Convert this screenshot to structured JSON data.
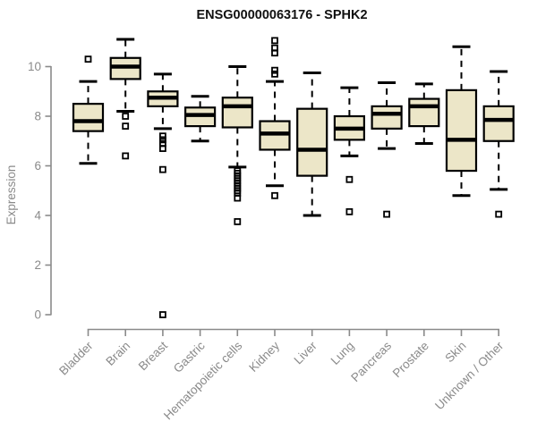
{
  "chart_data": {
    "type": "boxplot",
    "title": "ENSG00000063176 - SPHK2",
    "xlabel": "",
    "ylabel": "Expression",
    "ylim": [
      0,
      10
    ],
    "yticks": [
      0,
      2,
      4,
      6,
      8,
      10
    ],
    "grid": false,
    "legend": "none",
    "x_tick_rotation_degrees": 45,
    "categories": [
      "Bladder",
      "Brain",
      "Breast",
      "Gastric",
      "Hematopoietic cells",
      "Kidney",
      "Liver",
      "Lung",
      "Pancreas",
      "Prostate",
      "Skin",
      "Unknown / Other"
    ],
    "series": [
      {
        "name": "Bladder",
        "low": 6.1,
        "q1": 7.4,
        "median": 7.8,
        "q3": 8.5,
        "high": 9.4,
        "outliers": [
          10.3
        ]
      },
      {
        "name": "Brain",
        "low": 8.2,
        "q1": 9.5,
        "median": 10.0,
        "q3": 10.35,
        "high": 11.1,
        "outliers": [
          8.0,
          7.6,
          6.4
        ]
      },
      {
        "name": "Breast",
        "low": 7.5,
        "q1": 8.4,
        "median": 8.75,
        "q3": 9.0,
        "high": 9.7,
        "outliers": [
          7.2,
          7.05,
          6.9,
          6.7,
          5.85,
          0.0
        ]
      },
      {
        "name": "Gastric",
        "low": 7.0,
        "q1": 7.6,
        "median": 8.05,
        "q3": 8.35,
        "high": 8.8,
        "outliers": []
      },
      {
        "name": "Hematopoietic cells",
        "low": 5.95,
        "q1": 7.55,
        "median": 8.4,
        "q3": 8.75,
        "high": 10.0,
        "outliers": [
          5.8,
          5.7,
          5.6,
          5.5,
          5.4,
          5.3,
          5.2,
          5.1,
          5.0,
          4.9,
          4.7,
          3.75
        ]
      },
      {
        "name": "Kidney",
        "low": 5.2,
        "q1": 6.65,
        "median": 7.3,
        "q3": 7.8,
        "high": 9.4,
        "outliers": [
          11.05,
          10.75,
          10.55,
          9.85,
          9.7,
          4.8
        ]
      },
      {
        "name": "Liver",
        "low": 4.0,
        "q1": 5.6,
        "median": 6.65,
        "q3": 8.3,
        "high": 9.75,
        "outliers": []
      },
      {
        "name": "Lung",
        "low": 6.4,
        "q1": 7.05,
        "median": 7.5,
        "q3": 8.0,
        "high": 9.15,
        "outliers": [
          5.45,
          4.15
        ]
      },
      {
        "name": "Pancreas",
        "low": 6.7,
        "q1": 7.5,
        "median": 8.1,
        "q3": 8.4,
        "high": 9.35,
        "outliers": [
          4.05
        ]
      },
      {
        "name": "Prostate",
        "low": 6.9,
        "q1": 7.6,
        "median": 8.4,
        "q3": 8.7,
        "high": 9.3,
        "outliers": []
      },
      {
        "name": "Skin",
        "low": 4.8,
        "q1": 5.8,
        "median": 7.05,
        "q3": 9.05,
        "high": 10.8,
        "outliers": []
      },
      {
        "name": "Unknown / Other",
        "low": 5.05,
        "q1": 7.0,
        "median": 7.85,
        "q3": 8.4,
        "high": 9.8,
        "outliers": [
          4.05
        ]
      }
    ],
    "colors": {
      "background": "#ffffff",
      "box_fill": "#ece6c8",
      "box_border": "#000000",
      "median_line": "#000000",
      "whisker": "#000000",
      "outlier": "#000000",
      "axis": "#8a8a8a",
      "tick_text": "#8a8a8a",
      "title_text": "#111111"
    }
  }
}
